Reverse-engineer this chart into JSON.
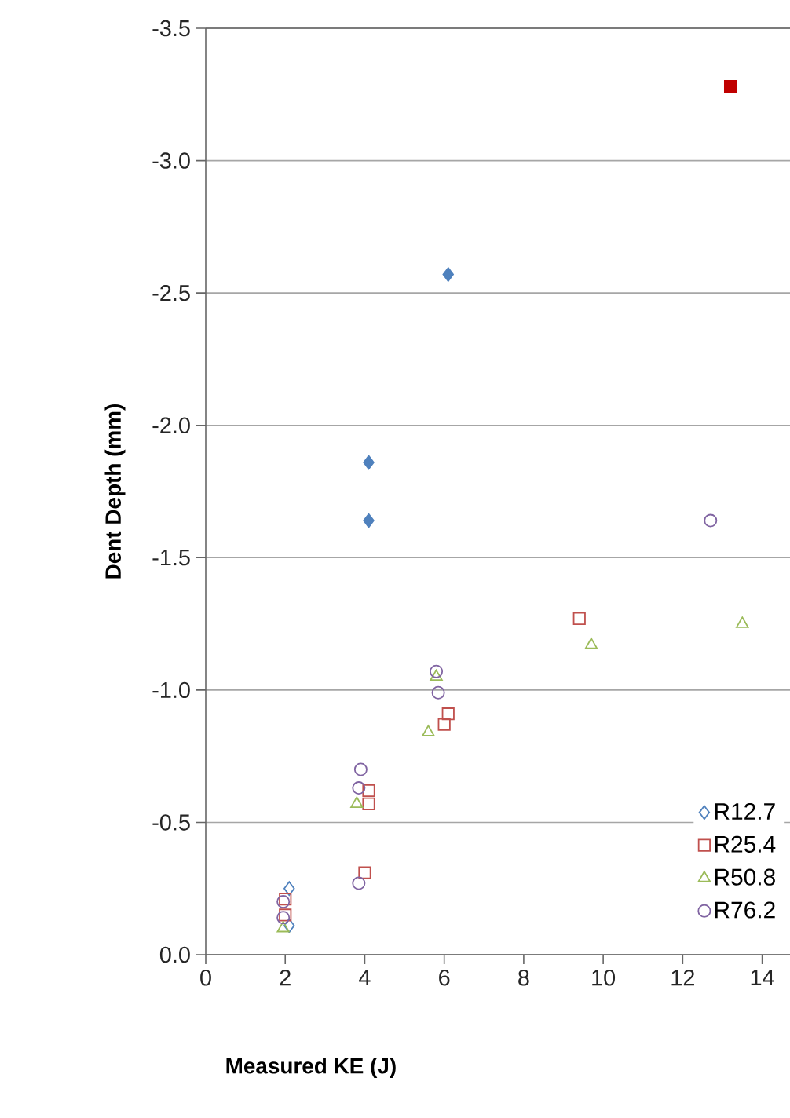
{
  "chart_data": {
    "type": "scatter",
    "xlabel": "Measured KE (J)",
    "ylabel": "Dent Depth (mm)",
    "xlim": [
      0,
      14.7
    ],
    "xticks": [
      0,
      2,
      4,
      6,
      8,
      10,
      12,
      14
    ],
    "ylim": [
      0,
      -3.5
    ],
    "yticks": [
      {
        "value": 0,
        "label": "0.0"
      },
      {
        "value": -0.5,
        "label": "-0.5"
      },
      {
        "value": -1,
        "label": "-1.0"
      },
      {
        "value": -1.5,
        "label": "-1.5"
      },
      {
        "value": -2,
        "label": "-2.0"
      },
      {
        "value": -2.5,
        "label": "-2.5"
      },
      {
        "value": -3,
        "label": "-3.0"
      },
      {
        "value": -3.5,
        "label": "-3.5"
      }
    ],
    "grid": "y",
    "legend": "bottom right",
    "series": [
      {
        "color": "#4f81bd",
        "marker": "diamond",
        "x": [
          6.1,
          4.1,
          4.1
        ],
        "values": [
          -2.57,
          -1.86,
          -1.64
        ]
      },
      {
        "color": "#c00000",
        "marker": "square",
        "x": [
          13.2
        ],
        "values": [
          -3.28
        ]
      },
      {
        "name": "R12.7",
        "color": "#4f81bd",
        "marker": "diamond",
        "x": [
          2.1,
          2.1
        ],
        "values": [
          -0.25,
          -0.11
        ]
      },
      {
        "name": "R25.4",
        "color": "#c0504d",
        "marker": "square",
        "x": [
          2.0,
          2.0,
          4.0,
          4.1,
          4.1,
          6.1,
          6.0,
          9.4
        ],
        "values": [
          -0.21,
          -0.15,
          -0.31,
          -0.62,
          -0.57,
          -0.91,
          -0.87,
          -1.27
        ]
      },
      {
        "name": "R50.8",
        "color": "#9bbb59",
        "marker": "triangle",
        "x": [
          1.95,
          3.8,
          5.6,
          5.8,
          9.7,
          13.5
        ],
        "values": [
          -0.1,
          -0.57,
          -0.84,
          -1.05,
          -1.17,
          -1.25
        ]
      },
      {
        "name": "R76.2",
        "color": "#8064a2",
        "marker": "circle",
        "x": [
          1.95,
          1.95,
          3.85,
          3.9,
          3.85,
          5.8,
          5.85,
          12.7
        ],
        "values": [
          -0.2,
          -0.14,
          -0.27,
          -0.7,
          -0.63,
          -1.07,
          -0.99,
          -1.64
        ]
      }
    ]
  }
}
